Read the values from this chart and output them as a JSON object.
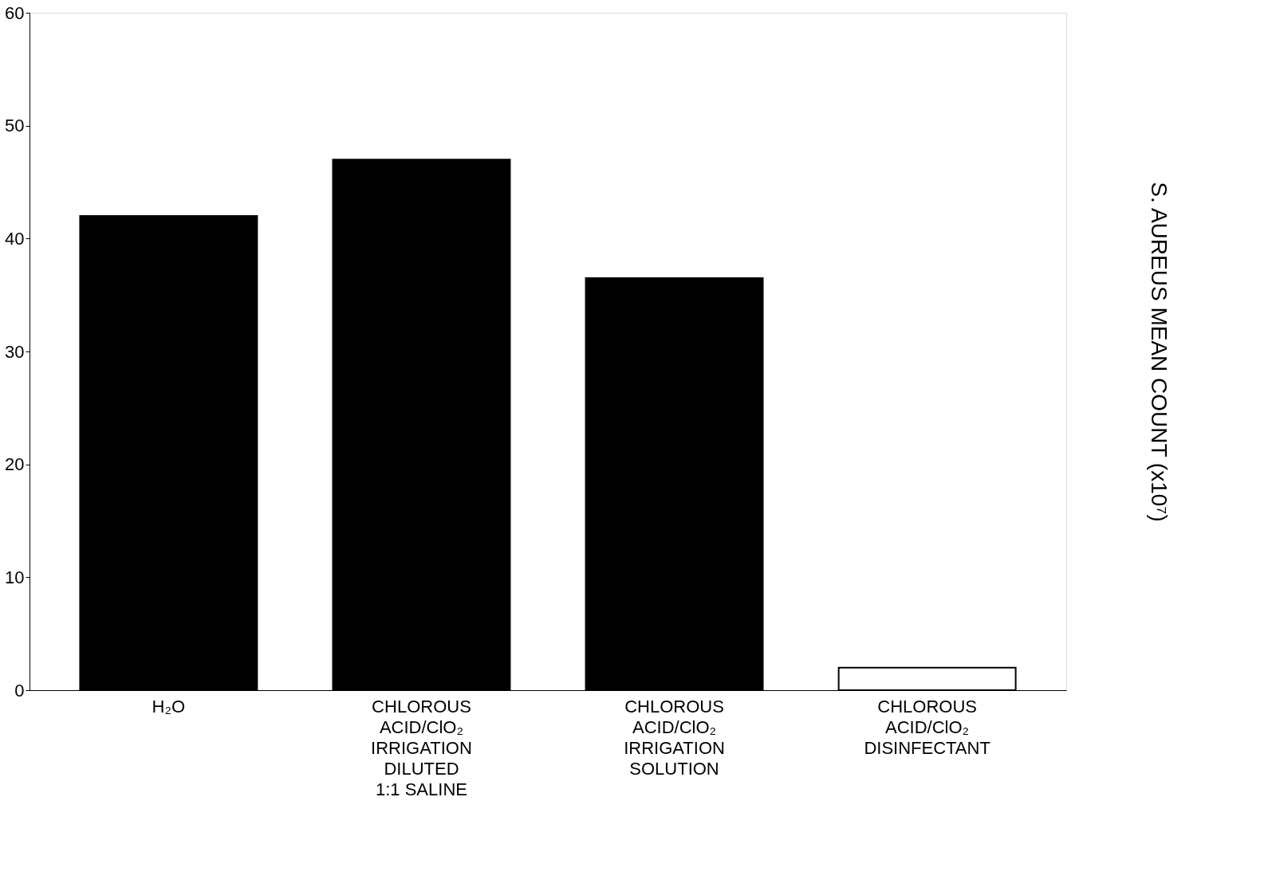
{
  "chart_data": {
    "type": "bar",
    "categories": [
      "H₂O",
      "CHLOROUS\nACID/ClO₂\nIRRIGATION\nDILUTED\n1:1 SALINE",
      "CHLOROUS\nACID/ClO₂\nIRRIGATION\nSOLUTION",
      "CHLOROUS\nACID/ClO₂\nDISINFECTANT"
    ],
    "values": [
      42,
      47,
      36.5,
      2
    ],
    "colors": [
      "#000000",
      "#000000",
      "#000000",
      "#ffffff"
    ],
    "ylabel": "S. AUREUS MEAN COUNT (x10⁷)",
    "ylim": [
      0,
      60
    ],
    "yticks": [
      0,
      10,
      20,
      30,
      40,
      50,
      60
    ],
    "grid": false
  }
}
